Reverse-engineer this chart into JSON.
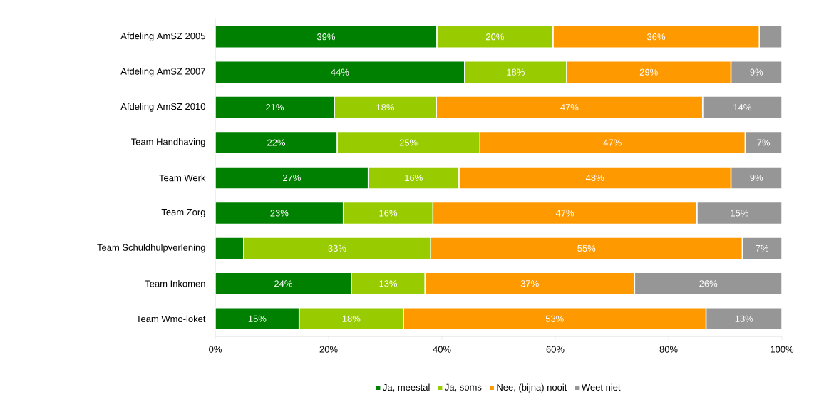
{
  "chart_data": {
    "type": "bar",
    "orientation": "horizontal",
    "stacked": true,
    "categories": [
      "Afdeling AmSZ 2005",
      "Afdeling AmSZ 2007",
      "Afdeling AmSZ 2010",
      "Team Handhaving",
      "Team Werk",
      "Team Zorg",
      "Team Schuldhulpverlening",
      "Team Inkomen",
      "Team Wmo-loket"
    ],
    "series": [
      {
        "name": "Ja, meestal",
        "color": "#008000",
        "values": [
          39.1,
          44,
          21,
          21.5,
          27,
          22.6,
          5,
          24,
          14.8
        ],
        "value_labels": [
          "39%",
          "44%",
          "21%",
          "22%",
          "27%",
          "23%",
          null,
          "24%",
          "15%"
        ]
      },
      {
        "name": "Ja, soms",
        "color": "#99cc00",
        "values": [
          20.5,
          18,
          18,
          25.2,
          16,
          15.8,
          33,
          13,
          18.4
        ],
        "value_labels": [
          "20%",
          "18%",
          "18%",
          "25%",
          "16%",
          "16%",
          "33%",
          "13%",
          "18%"
        ]
      },
      {
        "name": "Nee, (bijna) nooit",
        "color": "#ff9900",
        "values": [
          36.4,
          29,
          47,
          46.8,
          48,
          46.6,
          55,
          37,
          53.4
        ],
        "value_labels": [
          "36%",
          "29%",
          "47%",
          "47%",
          "48%",
          "47%",
          "55%",
          "37%",
          "53%"
        ]
      },
      {
        "name": "Weet niet",
        "color": "#969696",
        "values": [
          4,
          9,
          14,
          6.5,
          9,
          15,
          7,
          26,
          13.4
        ],
        "value_labels": [
          null,
          "9%",
          "14%",
          "7%",
          "9%",
          "15%",
          "7%",
          "26%",
          "13%"
        ]
      }
    ],
    "xlim": [
      0,
      100
    ],
    "xticks": [
      {
        "value": 0,
        "label": "0%"
      },
      {
        "value": 20,
        "label": "20%"
      },
      {
        "value": 40,
        "label": "40%"
      },
      {
        "value": 60,
        "label": "60%"
      },
      {
        "value": 80,
        "label": "80%"
      },
      {
        "value": 100,
        "label": "100%"
      }
    ],
    "legend": "bottom"
  }
}
